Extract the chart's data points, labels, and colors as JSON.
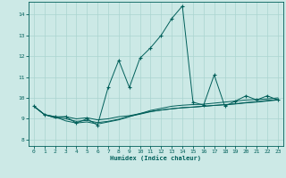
{
  "xlabel": "Humidex (Indice chaleur)",
  "xlim": [
    -0.5,
    23.5
  ],
  "ylim": [
    7.7,
    14.6
  ],
  "yticks": [
    8,
    9,
    10,
    11,
    12,
    13,
    14
  ],
  "xticks": [
    0,
    1,
    2,
    3,
    4,
    5,
    6,
    7,
    8,
    9,
    10,
    11,
    12,
    13,
    14,
    15,
    16,
    17,
    18,
    19,
    20,
    21,
    22,
    23
  ],
  "bg_color": "#cce9e6",
  "line_color": "#005f5a",
  "grid_color": "#aad4d0",
  "series_volatile": [
    9.6,
    9.2,
    9.1,
    9.1,
    8.8,
    9.0,
    8.7,
    10.5,
    11.8,
    10.5,
    11.9,
    12.4,
    13.0,
    13.8,
    14.4,
    9.8,
    9.65,
    11.1,
    9.6,
    9.85,
    10.1,
    9.9,
    10.1,
    9.9
  ],
  "series_linear": [
    9.6,
    9.2,
    9.1,
    8.9,
    8.8,
    8.85,
    8.75,
    8.85,
    8.95,
    9.1,
    9.25,
    9.4,
    9.5,
    9.6,
    9.65,
    9.68,
    9.7,
    9.75,
    9.8,
    9.85,
    9.9,
    9.92,
    9.95,
    10.0
  ],
  "series_smooth1": [
    9.6,
    9.2,
    9.05,
    9.1,
    9.0,
    9.05,
    8.95,
    9.0,
    9.1,
    9.15,
    9.25,
    9.35,
    9.42,
    9.48,
    9.53,
    9.56,
    9.6,
    9.64,
    9.68,
    9.72,
    9.78,
    9.82,
    9.88,
    9.92
  ],
  "series_smooth2": [
    9.6,
    9.2,
    9.05,
    9.0,
    8.88,
    8.92,
    8.82,
    8.88,
    8.98,
    9.12,
    9.22,
    9.34,
    9.42,
    9.48,
    9.53,
    9.56,
    9.6,
    9.64,
    9.67,
    9.71,
    9.76,
    9.8,
    9.85,
    9.9
  ]
}
